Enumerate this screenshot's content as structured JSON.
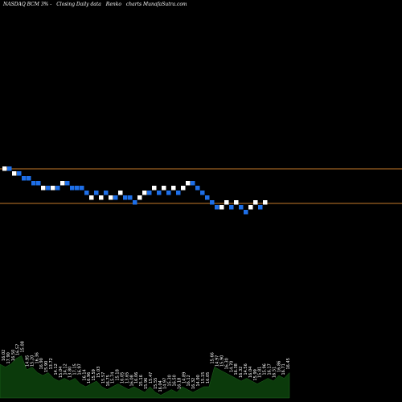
{
  "header": {
    "exchange_symbol": "NASDAQ BCM 3% -",
    "data_type": "Closing Daily data",
    "chart_kind": "Renko",
    "brand": "charts MunafaSutra.com"
  },
  "colors": {
    "background": "#000000",
    "up_brick": "#ffffff",
    "down_brick": "#1e6fe8",
    "ref_line": "#c47a2a",
    "volume_area": "#0b3a0b",
    "volume_label": "#ffffff"
  },
  "chart_data": {
    "type": "renko",
    "brick_levels": [
      21,
      21,
      20,
      20,
      19,
      19,
      18,
      18,
      17,
      17,
      17,
      17,
      18,
      18,
      17,
      17,
      17,
      16,
      15,
      16,
      15,
      16,
      15,
      15,
      16,
      15,
      15,
      14,
      15,
      16,
      16,
      17,
      16,
      17,
      16,
      17,
      16,
      17,
      18,
      18,
      17,
      16,
      15,
      14,
      13,
      13,
      14,
      13,
      14,
      13,
      12,
      13,
      14,
      13,
      14
    ],
    "brick_directions": [
      "up",
      "down",
      "up",
      "down",
      "down",
      "down",
      "down",
      "down",
      "up",
      "down",
      "up",
      "down",
      "up",
      "down",
      "down",
      "down",
      "down",
      "down",
      "up",
      "down",
      "up",
      "down",
      "up",
      "down",
      "up",
      "down",
      "down",
      "down",
      "up",
      "up",
      "down",
      "up",
      "down",
      "up",
      "down",
      "up",
      "down",
      "up",
      "up",
      "down",
      "down",
      "down",
      "down",
      "down",
      "down",
      "up",
      "up",
      "down",
      "up",
      "down",
      "down",
      "up",
      "up",
      "down",
      "up"
    ],
    "reference_lines": [
      "upper",
      "lower"
    ],
    "volume": [
      0.6,
      0.55,
      0.6,
      0.7,
      0.75,
      0.5,
      0.55,
      0.45,
      0.4,
      0.45,
      0.35,
      0.3,
      0.35,
      0.3,
      0.35,
      0.25,
      0.2,
      0.25,
      0.3,
      0.2,
      0.15,
      0.2,
      0.25,
      0.2,
      0.15,
      0.2,
      0.15,
      0.1,
      0.2,
      0.1,
      0.05,
      0.1,
      0.15,
      0.1,
      0.2,
      0.15,
      0.1,
      0.15,
      0.2,
      0.2,
      0.55,
      0.5,
      0.45,
      0.4,
      0.35,
      0.3,
      0.35,
      0.3,
      0.25,
      0.3,
      0.35,
      0.3,
      0.4,
      0.35,
      0.45
    ],
    "volume_labels": [
      "16.02",
      "17.90",
      "16.50",
      "16.57",
      "15.08",
      "14.95",
      "15.20",
      "16.36",
      "16.90",
      "15.90",
      "13.72",
      "14.12",
      "15.04",
      "14.12",
      "13.80",
      "17.15",
      "16.97",
      "16.14",
      "16.96",
      "15.59",
      "15.03",
      "15.57",
      "16.75",
      "15.74",
      "15.18",
      "16.05",
      "13.65",
      "16.08",
      "16.06",
      "15.16",
      "15.96",
      "15.47",
      "15.55",
      "16.04",
      "14.97",
      "15.30",
      "16.50",
      "16.18",
      "14.89",
      "16.12",
      "16.32",
      "14.90",
      "15.15",
      "16.05",
      "15.66",
      "14.97",
      "15.90",
      "16.30",
      "14.70",
      "16.38",
      "16.32",
      "14.56",
      "16.04",
      "15.99",
      "15.81",
      "15.96",
      "16.17",
      "16.51",
      "16.86",
      "16.71",
      "16.45"
    ]
  }
}
